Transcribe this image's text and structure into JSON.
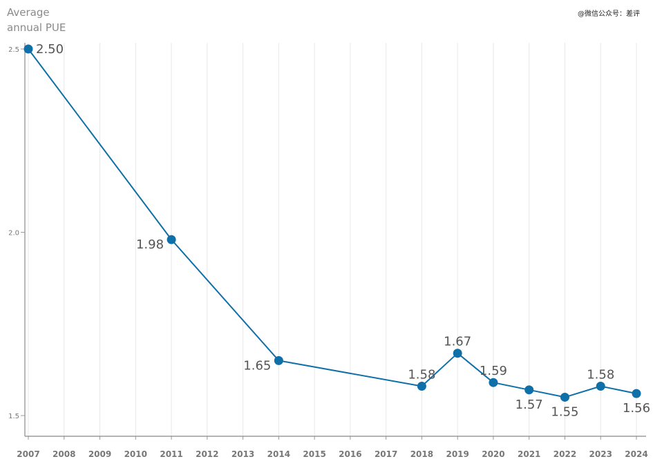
{
  "chart_data": {
    "type": "line",
    "ylabel": [
      "Average",
      "annual PUE"
    ],
    "watermark": "@微信公众号：差评",
    "categories": [
      "2007",
      "2008",
      "2009",
      "2010",
      "2011",
      "2012",
      "2013",
      "2014",
      "2015",
      "2016",
      "2017",
      "2018",
      "2019",
      "2020",
      "2021",
      "2022",
      "2023",
      "2024"
    ],
    "ylim": [
      1.45,
      2.52
    ],
    "yticks": [
      1.5,
      2.0,
      2.5
    ],
    "ytick_labels": [
      "1.5",
      "2.0",
      "2.5"
    ],
    "grid": "vertical",
    "series": [
      {
        "name": "Average annual PUE",
        "color": "#0f6fa8",
        "x": [
          "2007",
          "2011",
          "2014",
          "2018",
          "2019",
          "2020",
          "2021",
          "2022",
          "2023",
          "2024"
        ],
        "values": [
          2.5,
          1.98,
          1.65,
          1.58,
          1.67,
          1.59,
          1.57,
          1.55,
          1.58,
          1.56
        ],
        "labels": [
          "2.50",
          "1.98",
          "1.65",
          "1.58",
          "1.67",
          "1.59",
          "1.57",
          "1.55",
          "1.58",
          "1.56"
        ]
      }
    ]
  }
}
